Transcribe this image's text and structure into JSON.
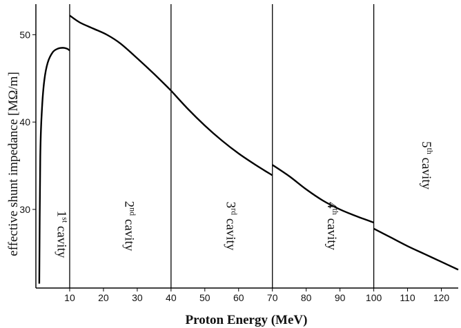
{
  "chart_data": {
    "type": "line",
    "title": "",
    "xlabel": "Proton Energy (MeV)",
    "ylabel": "effective shunt impedance [MΩ/m]",
    "xlim": [
      0,
      125
    ],
    "ylim": [
      21,
      53.5
    ],
    "xticks": [
      10,
      20,
      30,
      40,
      50,
      60,
      70,
      80,
      90,
      100,
      110,
      120
    ],
    "yticks": [
      30,
      40,
      50
    ],
    "grid": false,
    "region_boundaries": [
      10,
      40,
      70,
      100
    ],
    "regions": [
      {
        "num": "1",
        "sup": "st",
        "word": "cavity",
        "x_center": 5
      },
      {
        "num": "2",
        "sup": "nd",
        "word": "cavity",
        "x_center": 25
      },
      {
        "num": "3",
        "sup": "rd",
        "word": "cavity",
        "x_center": 55
      },
      {
        "num": "4",
        "sup": "th",
        "word": "cavity",
        "x_center": 85
      },
      {
        "num": "5",
        "sup": "th",
        "word": "cavity",
        "x_center": 113
      }
    ],
    "series": [
      {
        "name": "1st cavity",
        "x": [
          1,
          1.3,
          1.8,
          2.5,
          3.5,
          5,
          6.5,
          8,
          9.2,
          10
        ],
        "y": [
          21.5,
          36,
          41.5,
          44.8,
          46.8,
          48,
          48.4,
          48.5,
          48.4,
          48.2
        ]
      },
      {
        "name": "2nd cavity",
        "x": [
          10,
          13,
          17,
          21,
          25,
          30,
          35,
          40
        ],
        "y": [
          52.2,
          51.4,
          50.7,
          50.0,
          49.0,
          47.3,
          45.5,
          43.6
        ]
      },
      {
        "name": "3rd cavity",
        "x": [
          40,
          45,
          50,
          55,
          60,
          65,
          70
        ],
        "y": [
          43.6,
          41.5,
          39.6,
          37.9,
          36.4,
          35.1,
          33.9
        ]
      },
      {
        "name": "4th cavity",
        "x": [
          70,
          75,
          80,
          85,
          90,
          95,
          100
        ],
        "y": [
          35.1,
          33.8,
          32.3,
          31.0,
          30.0,
          29.2,
          28.5
        ]
      },
      {
        "name": "5th cavity",
        "x": [
          100,
          105,
          110,
          115,
          120,
          125
        ],
        "y": [
          27.8,
          26.8,
          25.8,
          24.9,
          24.0,
          23.1
        ]
      }
    ]
  }
}
